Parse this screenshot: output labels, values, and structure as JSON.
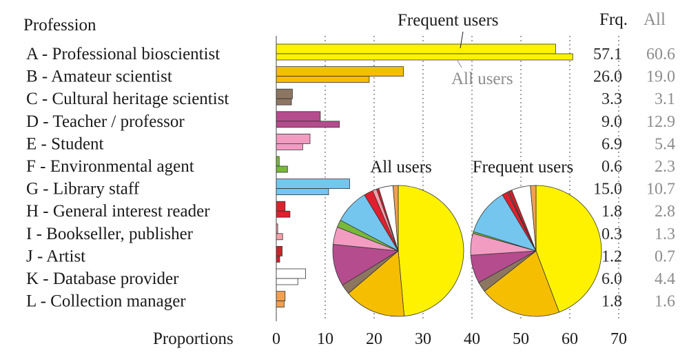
{
  "chart_data": {
    "type": "bar",
    "orientation": "horizontal",
    "category_header": "Profession",
    "xlabel": "Proportions",
    "xlim": [
      0,
      70
    ],
    "xticks": [
      0,
      10,
      20,
      30,
      40,
      50,
      60,
      70
    ],
    "value_header_frequent": "Frq.",
    "value_header_all": "All",
    "callout_frequent": "Frequent users",
    "callout_all": "All users",
    "categories": [
      {
        "label": "A - Professional bioscientist",
        "color": "#FFF200",
        "frequent": 57.1,
        "all": 60.6
      },
      {
        "label": "B - Amateur scientist",
        "color": "#F5BE00",
        "frequent": 26.0,
        "all": 19.0
      },
      {
        "label": "C - Cultural heritage scientist",
        "color": "#8C7662",
        "frequent": 3.3,
        "all": 3.1
      },
      {
        "label": "D - Teacher / professor",
        "color": "#B54C8E",
        "frequent": 9.0,
        "all": 12.9
      },
      {
        "label": "E - Student",
        "color": "#F29CC2",
        "frequent": 6.9,
        "all": 5.4
      },
      {
        "label": "F - Environmental agent",
        "color": "#78B83A",
        "frequent": 0.6,
        "all": 2.3
      },
      {
        "label": "G - Library staff",
        "color": "#74C6EE",
        "frequent": 15.0,
        "all": 10.7
      },
      {
        "label": "H - General interest reader",
        "color": "#E0202E",
        "frequent": 1.8,
        "all": 2.8
      },
      {
        "label": "I -  Bookseller, publisher",
        "color": "#F4A0AA",
        "frequent": 0.3,
        "all": 1.3
      },
      {
        "label": "J -  Artist",
        "color": "#D0202A",
        "frequent": 1.2,
        "all": 0.7
      },
      {
        "label": "K - Database provider",
        "color": "#FFFFFF",
        "frequent": 6.0,
        "all": 4.4
      },
      {
        "label": "L - Collection manager",
        "color": "#F0A050",
        "frequent": 1.8,
        "all": 1.6
      }
    ],
    "pies": [
      {
        "title": "All users",
        "source": "all"
      },
      {
        "title": "Frequent users",
        "source": "frequent"
      }
    ]
  }
}
